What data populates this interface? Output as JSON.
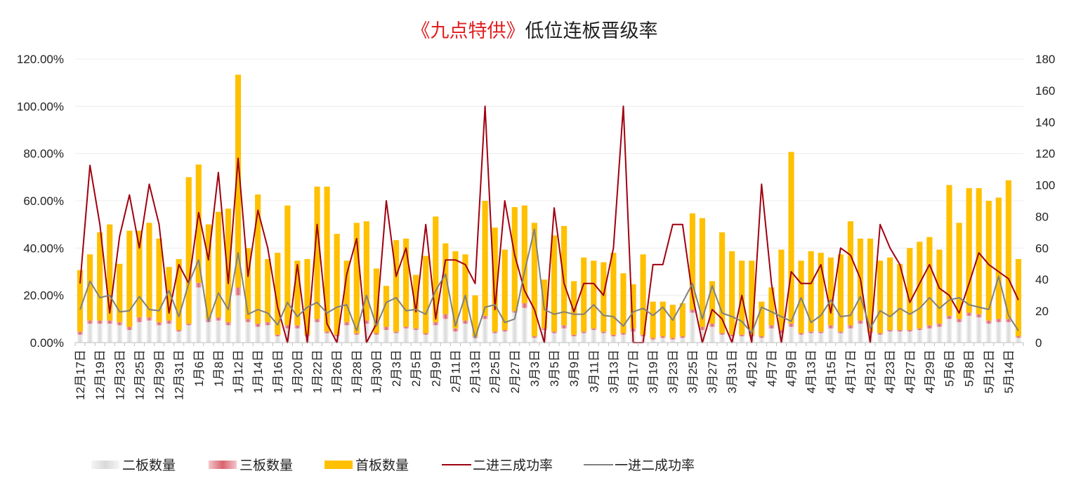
{
  "chart_data": {
    "type": "bar",
    "title_parts": [
      "《九点特供》",
      "低位连板晋级率"
    ],
    "y_left": {
      "min": 0,
      "max": 1.2,
      "ticks": [
        "0.00%",
        "20.00%",
        "40.00%",
        "60.00%",
        "80.00%",
        "100.00%",
        "120.00%"
      ]
    },
    "y_right": {
      "min": 0,
      "max": 180,
      "ticks": [
        "0",
        "20",
        "40",
        "60",
        "80",
        "100",
        "120",
        "140",
        "160",
        "180"
      ]
    },
    "categories": [
      "12月17日",
      "12月18日",
      "12月19日",
      "12月20日",
      "12月23日",
      "12月24日",
      "12月25日",
      "12月26日",
      "12月29日",
      "12月30日",
      "12月31日",
      "1月5日",
      "1月6日",
      "1月7日",
      "1月8日",
      "1月9日",
      "1月12日",
      "1月13日",
      "1月14日",
      "1月15日",
      "1月16日",
      "1月19日",
      "1月20日",
      "1月21日",
      "1月22日",
      "1月23日",
      "1月26日",
      "1月27日",
      "1月28日",
      "1月29日",
      "1月30日",
      "2月2日",
      "2月3日",
      "2月4日",
      "2月5日",
      "2月6日",
      "2月9日",
      "2月10日",
      "2月11日",
      "2月12日",
      "2月13日",
      "2月24日",
      "2月25日",
      "2月26日",
      "2月27日",
      "3月2日",
      "3月3日",
      "3月4日",
      "3月5日",
      "3月6日",
      "3月9日",
      "3月10日",
      "3月11日",
      "3月12日",
      "3月13日",
      "3月16日",
      "3月17日",
      "3月18日",
      "3月19日",
      "3月20日",
      "3月23日",
      "3月24日",
      "3月25日",
      "3月26日",
      "3月27日",
      "3月30日",
      "3月31日",
      "4月1日",
      "4月2日",
      "4月3日",
      "4月7日",
      "4月8日",
      "4月9日",
      "4月10日",
      "4月13日",
      "4月14日",
      "4月15日",
      "4月16日",
      "4月17日",
      "4月20日",
      "4月21日",
      "4月22日",
      "4月23日",
      "4月24日",
      "4月27日",
      "4月28日",
      "4月29日",
      "4月30日",
      "5月6日",
      "5月7日",
      "5月8日",
      "5月11日",
      "5月12日",
      "5月13日",
      "5月14日",
      "5月15日"
    ],
    "x_tick_labels": [
      "12月17日",
      "12月19日",
      "12月23日",
      "12月25日",
      "12月29日",
      "12月31日",
      "1月6日",
      "1月8日",
      "1月12日",
      "1月14日",
      "1月16日",
      "1月20日",
      "1月22日",
      "1月26日",
      "1月28日",
      "1月30日",
      "2月3日",
      "2月5日",
      "2月9日",
      "2月11日",
      "2月13日",
      "2月25日",
      "2月27日",
      "3月3日",
      "3月5日",
      "3月9日",
      "3月11日",
      "3月13日",
      "3月17日",
      "3月19日",
      "3月23日",
      "3月25日",
      "3月27日",
      "3月31日",
      "4月2日",
      "4月7日",
      "4月9日",
      "4月13日",
      "4月15日",
      "4月17日",
      "4月21日",
      "4月23日",
      "4月27日",
      "4月29日",
      "5月6日",
      "5月8日",
      "5月12日",
      "5月14日"
    ],
    "series": [
      {
        "name": "二板数量",
        "axis": "right",
        "kind": "bar",
        "color": "#e6e6e6",
        "values": [
          5,
          12,
          12,
          12,
          11,
          8,
          13,
          14,
          11,
          12,
          7,
          11,
          35,
          13,
          14,
          11,
          30,
          13,
          10,
          11,
          4,
          9,
          9,
          4,
          13,
          6,
          4,
          11,
          5,
          12,
          5,
          8,
          6,
          9,
          8,
          5,
          11,
          15,
          7,
          12,
          3,
          15,
          6,
          7,
          19,
          22,
          3,
          8,
          6,
          9,
          4,
          6,
          8,
          6,
          4,
          5,
          7,
          4,
          2,
          3,
          2,
          3,
          19,
          8,
          10,
          5,
          4,
          4,
          4,
          3,
          9,
          6,
          10,
          5,
          6,
          6,
          9,
          6,
          9,
          12,
          6,
          5,
          7,
          7,
          7,
          8,
          9,
          10,
          15,
          13,
          17,
          16,
          12,
          13,
          13,
          3
        ]
      },
      {
        "name": "三板数量",
        "axis": "right",
        "kind": "bar",
        "color": "#e8a0a8",
        "values": [
          2,
          2,
          2,
          2,
          2,
          2,
          3,
          2,
          2,
          2,
          1,
          1,
          3,
          2,
          2,
          2,
          5,
          2,
          2,
          2,
          1,
          2,
          2,
          1,
          2,
          1,
          1,
          2,
          1,
          2,
          1,
          2,
          1,
          1,
          1,
          1,
          2,
          3,
          2,
          2,
          1,
          2,
          1,
          1,
          1,
          3,
          1,
          1,
          1,
          2,
          1,
          1,
          1,
          1,
          1,
          1,
          2,
          1,
          1,
          1,
          1,
          1,
          2,
          2,
          2,
          1,
          1,
          1,
          1,
          1,
          2,
          2,
          2,
          1,
          1,
          1,
          2,
          1,
          2,
          2,
          1,
          1,
          1,
          1,
          1,
          1,
          2,
          2,
          2,
          2,
          2,
          2,
          2,
          2,
          2,
          1
        ]
      },
      {
        "name": "首板数量",
        "axis": "right",
        "kind": "bar",
        "color": "#ffc000",
        "values": [
          39,
          42,
          56,
          61,
          37,
          61,
          55,
          60,
          53,
          34,
          45,
          93,
          75,
          60,
          67,
          72,
          135,
          45,
          82,
          40,
          52,
          76,
          41,
          48,
          84,
          92,
          64,
          39,
          70,
          63,
          41,
          26,
          58,
          56,
          34,
          49,
          67,
          45,
          49,
          42,
          26,
          73,
          66,
          51,
          66,
          62,
          72,
          31,
          61,
          63,
          34,
          47,
          43,
          44,
          52,
          38,
          28,
          51,
          23,
          22,
          21,
          21,
          61,
          69,
          27,
          64,
          53,
          47,
          47,
          22,
          24,
          51,
          109,
          46,
          51,
          50,
          43,
          49,
          66,
          52,
          59,
          46,
          46,
          42,
          52,
          55,
          56,
          47,
          83,
          61,
          79,
          80,
          76,
          77,
          88,
          49
        ]
      },
      {
        "name": "二进三成功率",
        "axis": "left",
        "kind": "line",
        "color": "#a00010",
        "values": [
          0.25,
          0.75,
          0.5,
          0.125,
          0.45,
          0.625,
          0.4,
          0.67,
          0.5,
          0.125,
          0.33,
          0.25,
          0.55,
          0.35,
          0.72,
          0.25,
          0.78,
          0.28,
          0.56,
          0.4,
          0.15,
          0,
          0.33,
          0,
          0.5,
          0.08,
          0,
          0.29,
          0.44,
          0,
          0.08,
          0.6,
          0.28,
          0.4,
          0.13,
          0.5,
          0.1,
          0.35,
          0.35,
          0.33,
          0.25,
          1.0,
          0.14,
          0.6,
          0.37,
          0.22,
          0.14,
          0,
          0.57,
          0.25,
          0.13,
          0.25,
          0.25,
          0.2,
          0.4,
          1.0,
          0,
          0,
          0.33,
          0.33,
          0.5,
          0.5,
          0.2,
          0,
          0.14,
          0.1,
          0,
          0.2,
          0,
          0.67,
          0.25,
          0,
          0.3,
          0.25,
          0.25,
          0.33,
          0.125,
          0.4,
          0.37,
          0.27,
          0,
          0.5,
          0.4,
          0.33,
          0.17,
          0.25,
          0.33,
          0.23,
          0.2,
          0.125,
          0.25,
          0.38,
          0.33,
          0.3,
          0.27,
          0.18
        ]
      },
      {
        "name": "一进二成功率",
        "axis": "left",
        "kind": "line",
        "color": "#808080",
        "values": [
          0.14,
          0.26,
          0.19,
          0.2,
          0.13,
          0.135,
          0.195,
          0.14,
          0.135,
          0.22,
          0.11,
          0.25,
          0.35,
          0.09,
          0.21,
          0.14,
          0.38,
          0.12,
          0.14,
          0.125,
          0.075,
          0.17,
          0.11,
          0.15,
          0.17,
          0.125,
          0.15,
          0.16,
          0.05,
          0.2,
          0.07,
          0.17,
          0.19,
          0.135,
          0.14,
          0.12,
          0.22,
          0.29,
          0.07,
          0.2,
          0.02,
          0.15,
          0.16,
          0.085,
          0.1,
          0.3,
          0.48,
          0.14,
          0.12,
          0.13,
          0.12,
          0.12,
          0.16,
          0.115,
          0.11,
          0.07,
          0.13,
          0.145,
          0.115,
          0.15,
          0.095,
          0.17,
          0.25,
          0.1,
          0.24,
          0.125,
          0.11,
          0.09,
          0.04,
          0.15,
          0.13,
          0.11,
          0.09,
          0.19,
          0.085,
          0.115,
          0.18,
          0.11,
          0.115,
          0.195,
          0.06,
          0.135,
          0.11,
          0.145,
          0.12,
          0.145,
          0.19,
          0.145,
          0.18,
          0.19,
          0.16,
          0.15,
          0.14,
          0.28,
          0.115,
          0.05
        ]
      }
    ],
    "legend_position": "bottom",
    "grid": true
  }
}
